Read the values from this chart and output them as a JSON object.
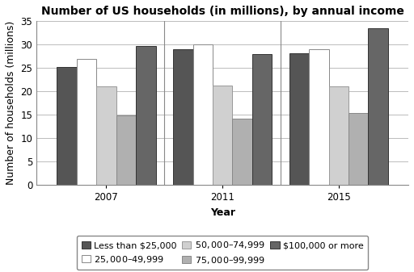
{
  "title": "Number of US households (in millions), by annual income",
  "xlabel": "Year",
  "ylabel": "Number of households (millions)",
  "years": [
    "2007",
    "2011",
    "2015"
  ],
  "categories": [
    "Less than $25,000",
    "$25,000–$49,999",
    "$50,000–$74,999",
    "$75,000–$99,999",
    "$100,000 or more"
  ],
  "values": {
    "Less than $25,000": [
      25.3,
      29.0,
      28.1
    ],
    "$25,000–$49,999": [
      27.0,
      30.0,
      29.0
    ],
    "$50,000–$74,999": [
      21.0,
      21.2,
      21.0
    ],
    "$75,000–$99,999": [
      14.8,
      14.1,
      15.3
    ],
    "$100,000 or more": [
      29.7,
      28.0,
      33.5
    ]
  },
  "colors": [
    "#555555",
    "#ffffff",
    "#d0d0d0",
    "#b0b0b0",
    "#666666"
  ],
  "bar_edge_colors": [
    "#333333",
    "#888888",
    "#999999",
    "#888888",
    "#333333"
  ],
  "ylim": [
    0,
    35
  ],
  "yticks": [
    0,
    5,
    10,
    15,
    20,
    25,
    30,
    35
  ],
  "background_color": "#ffffff",
  "grid_color": "#bbbbbb",
  "title_fontsize": 10,
  "axis_label_fontsize": 9,
  "tick_fontsize": 8.5,
  "legend_fontsize": 8
}
